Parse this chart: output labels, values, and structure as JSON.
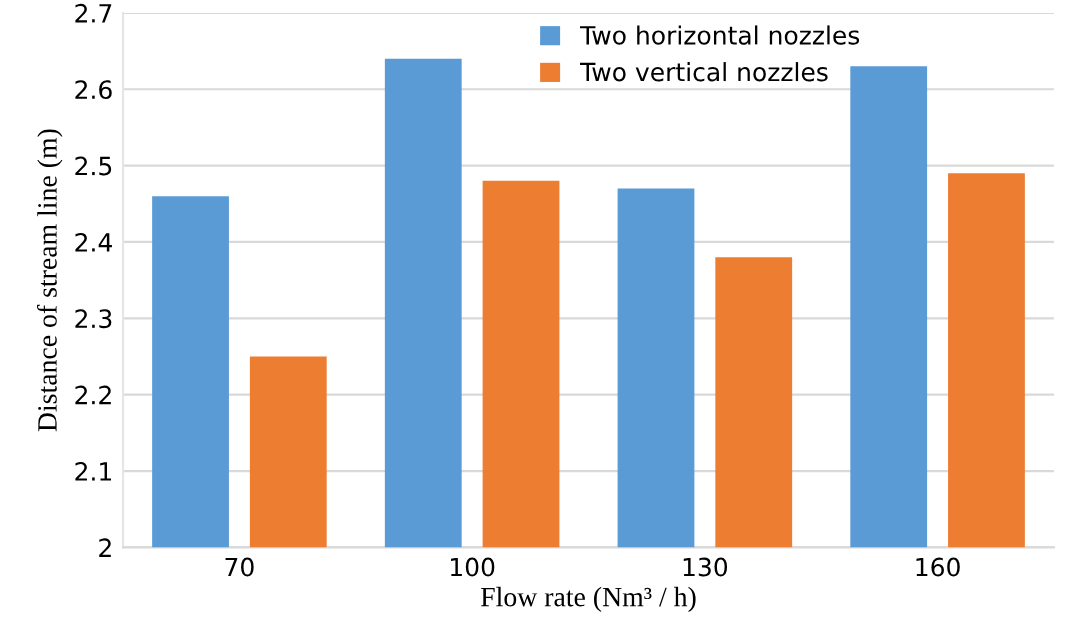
{
  "chart_data": {
    "type": "bar",
    "xlabel": "Flow rate (Nm³ / h)",
    "ylabel": "Distance of stream line (m)",
    "categories": [
      "70",
      "100",
      "130",
      "160"
    ],
    "series": [
      {
        "name": "Two horizontal nozzles",
        "color": "#5b9bd5",
        "values": [
          2.46,
          2.64,
          2.47,
          2.63
        ]
      },
      {
        "name": "Two vertical nozzles",
        "color": "#ed7d31",
        "values": [
          2.25,
          2.48,
          2.38,
          2.49
        ]
      }
    ],
    "ylim": [
      2,
      2.7
    ],
    "yticks": [
      2,
      2.1,
      2.2,
      2.3,
      2.4,
      2.5,
      2.6,
      2.7
    ],
    "grid": "y",
    "legend": "top"
  }
}
